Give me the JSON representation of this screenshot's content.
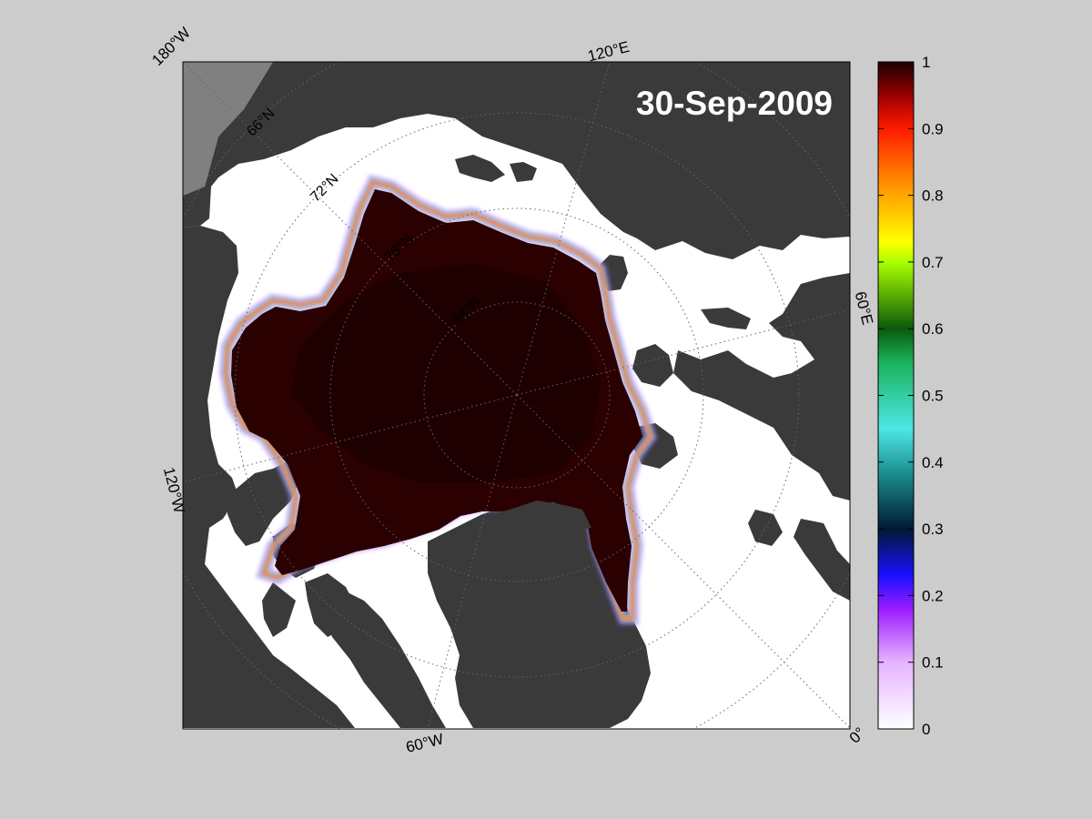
{
  "map": {
    "date": "30-Sep-2009",
    "lon_labels": [
      "180°W",
      "120°E",
      "60°E",
      "0°",
      "60°W",
      "120°W"
    ],
    "lat_labels": [
      "66°N",
      "72°N",
      "78°N",
      "84°N"
    ],
    "colors": {
      "background": "#cccccc",
      "land": "#3a3a3a",
      "open_water": "#ffffff",
      "ice": "#2a0000",
      "outside_grid": "#808080"
    }
  },
  "colorbar": {
    "ticks": [
      "0",
      "0.1",
      "0.2",
      "0.3",
      "0.4",
      "0.5",
      "0.6",
      "0.7",
      "0.8",
      "0.9",
      "1"
    ],
    "range": [
      0,
      1
    ],
    "stops": [
      {
        "v": 0.0,
        "c": "#ffffff"
      },
      {
        "v": 0.1,
        "c": "#e6b3ff"
      },
      {
        "v": 0.18,
        "c": "#9a1cff"
      },
      {
        "v": 0.23,
        "c": "#1a10ff"
      },
      {
        "v": 0.3,
        "c": "#001a33"
      },
      {
        "v": 0.38,
        "c": "#1a8a8a"
      },
      {
        "v": 0.45,
        "c": "#4de6e6"
      },
      {
        "v": 0.55,
        "c": "#1ab35a"
      },
      {
        "v": 0.6,
        "c": "#0a5a0a"
      },
      {
        "v": 0.7,
        "c": "#aaff00"
      },
      {
        "v": 0.73,
        "c": "#ffff00"
      },
      {
        "v": 0.82,
        "c": "#ff8c00"
      },
      {
        "v": 0.9,
        "c": "#ff1a00"
      },
      {
        "v": 0.95,
        "c": "#990000"
      },
      {
        "v": 1.0,
        "c": "#1a0000"
      }
    ]
  }
}
